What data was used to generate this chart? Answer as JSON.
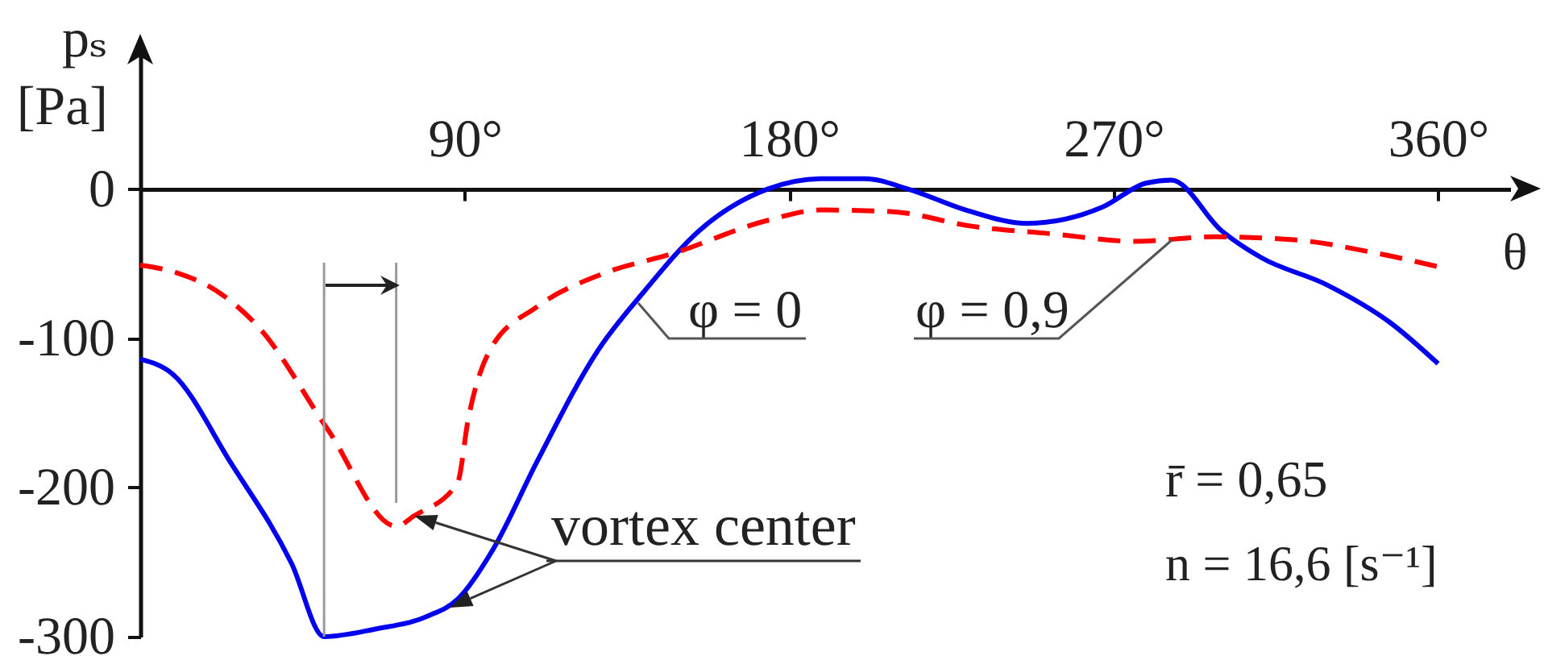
{
  "chart_data": {
    "type": "line",
    "xlabel": "θ",
    "ylabel": "pₛ [Pa]",
    "xlim": [
      0,
      380
    ],
    "ylim": [
      -300,
      90
    ],
    "xticks": [
      {
        "value": 90,
        "label": "90°"
      },
      {
        "value": 180,
        "label": "180°"
      },
      {
        "value": 270,
        "label": "270°"
      },
      {
        "value": 360,
        "label": "360°"
      }
    ],
    "yticks": [
      -300,
      -200,
      -100,
      0
    ],
    "annotations": [
      {
        "text": "vortex center",
        "x": 76,
        "y": -219
      },
      "r̄ = 0,65",
      "n = 16,6 [s⁻¹]"
    ],
    "ref_lines": [
      {
        "axis": "x",
        "value": 51,
        "color": "#999999"
      },
      {
        "axis": "x",
        "value": 71,
        "color": "#999999"
      }
    ],
    "series": [
      {
        "name": "φ = 0",
        "color": "#0000ee",
        "line_style": "solid",
        "x": [
          0,
          9,
          25,
          42,
          51,
          65,
          80,
          88,
          98,
          110,
          127,
          140,
          155,
          174,
          189,
          201,
          213,
          229,
          246,
          267,
          279,
          286,
          300,
          311,
          329,
          347,
          360
        ],
        "values": [
          -114,
          -124,
          -183,
          -251,
          -300,
          -295,
          -286,
          -275,
          -241,
          -183,
          -108,
          -68,
          -28,
          0,
          7,
          7,
          0,
          -14,
          -23,
          -12,
          4,
          6,
          -28,
          -46,
          -64,
          -90,
          -117
        ]
      },
      {
        "name": "φ = 0,9",
        "color": "#ff0000",
        "line_style": "dashed",
        "x": [
          0,
          10,
          21,
          33,
          52,
          71,
          76,
          88,
          91,
          97,
          110,
          128,
          148,
          174,
          189,
          208,
          231,
          253,
          276,
          298,
          320,
          343,
          360
        ],
        "values": [
          -51,
          -56,
          -68,
          -93,
          -161,
          -226,
          -219,
          -197,
          -154,
          -108,
          -79,
          -57,
          -43,
          -21,
          -14,
          -15,
          -25,
          -30,
          -35,
          -32,
          -34,
          -43,
          -52
        ]
      }
    ]
  }
}
